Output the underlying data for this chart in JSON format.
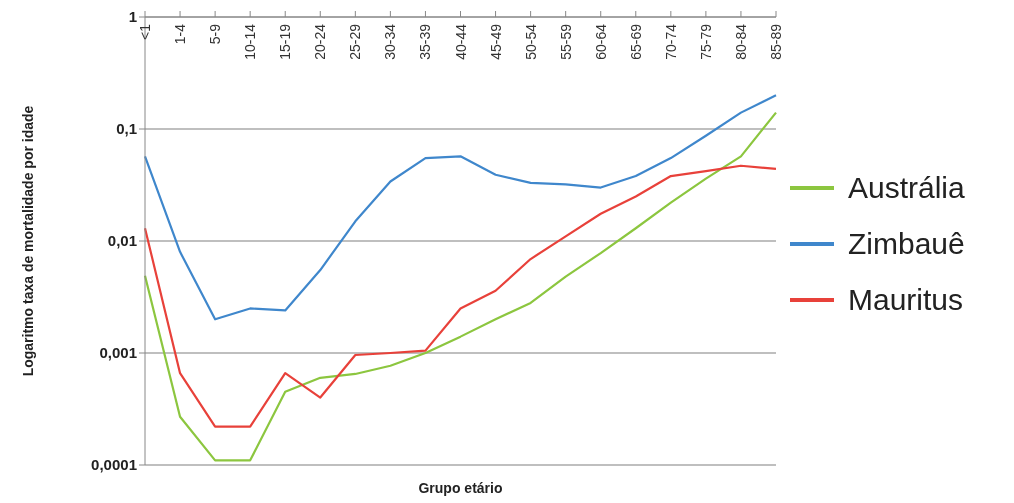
{
  "chart_data": {
    "type": "line",
    "xlabel": "Grupo etário",
    "ylabel": "Logaritmo taxa de mortalidade por idade",
    "log": "y",
    "grid": "y",
    "legend": "right",
    "marker": "none",
    "categories": [
      "<1",
      "1-4",
      "5-9",
      "10-14",
      "15-19",
      "20-24",
      "25-29",
      "30-34",
      "35-39",
      "40-44",
      "45-49",
      "50-54",
      "55-59",
      "60-64",
      "65-69",
      "70-74",
      "75-79",
      "80-84",
      "85-89"
    ],
    "ylim": [
      0.0001,
      1
    ],
    "yticks": [
      {
        "value": 0.0001,
        "label": "0,0001"
      },
      {
        "value": 0.001,
        "label": "0,001"
      },
      {
        "value": 0.01,
        "label": "0,01"
      },
      {
        "value": 0.1,
        "label": "0,1"
      },
      {
        "value": 1,
        "label": "1"
      }
    ],
    "series": [
      {
        "name": "Austrália",
        "color": "#8cc63f",
        "values": [
          0.0049,
          0.00027,
          0.00011,
          0.00011,
          0.00045,
          0.0006,
          0.00065,
          0.00077,
          0.001,
          0.0014,
          0.002,
          0.0028,
          0.0048,
          0.0078,
          0.013,
          0.022,
          0.036,
          0.057,
          0.14
        ]
      },
      {
        "name": "Zimbauê",
        "color": "#3f87cc",
        "values": [
          0.057,
          0.008,
          0.002,
          0.0025,
          0.0024,
          0.0055,
          0.015,
          0.034,
          0.055,
          0.057,
          0.039,
          0.033,
          0.032,
          0.03,
          0.038,
          0.055,
          0.087,
          0.14,
          0.2
        ]
      },
      {
        "name": "Mauritus",
        "color": "#e8413a",
        "values": [
          0.013,
          0.00066,
          0.00022,
          0.00022,
          0.00066,
          0.0004,
          0.00096,
          0.001,
          0.00105,
          0.0025,
          0.0036,
          0.0069,
          0.011,
          0.0175,
          0.025,
          0.038,
          0.042,
          0.047,
          0.044
        ]
      }
    ]
  }
}
